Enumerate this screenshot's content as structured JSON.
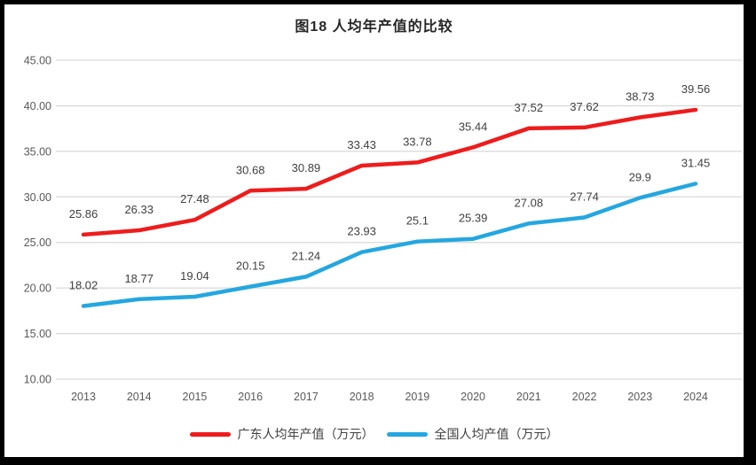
{
  "title": "图18 人均年产值的比较",
  "chart_data": {
    "type": "line",
    "title": "图18 人均年产值的比较",
    "categories": [
      "2013",
      "2014",
      "2015",
      "2016",
      "2017",
      "2018",
      "2019",
      "2020",
      "2021",
      "2022",
      "2023",
      "2024"
    ],
    "series": [
      {
        "name": "广东人均年产值（万元）",
        "color": "#ee1c1c",
        "values": [
          "25.86",
          "26.33",
          "27.48",
          "30.68",
          "30.89",
          "33.43",
          "33.78",
          "35.44",
          "37.52",
          "37.62",
          "38.73",
          "39.56"
        ]
      },
      {
        "name": "全国人均产值（万元）",
        "color": "#24a7e0",
        "values": [
          "18.02",
          "18.77",
          "19.04",
          "20.15",
          "21.24",
          "23.93",
          "25.1",
          "25.39",
          "27.08",
          "27.74",
          "29.9",
          "31.45"
        ]
      }
    ],
    "y_axis": {
      "min": 10,
      "max": 45,
      "step": 5,
      "ticks": [
        "10.00",
        "15.00",
        "20.00",
        "25.00",
        "30.00",
        "35.00",
        "40.00",
        "45.00"
      ]
    },
    "grid": "horizontal",
    "legend_position": "bottom",
    "colors": {
      "gridline": "#d9d9d9",
      "axis_text": "#595959",
      "data_label_text": "#404040",
      "frame_border": "#000000"
    }
  }
}
